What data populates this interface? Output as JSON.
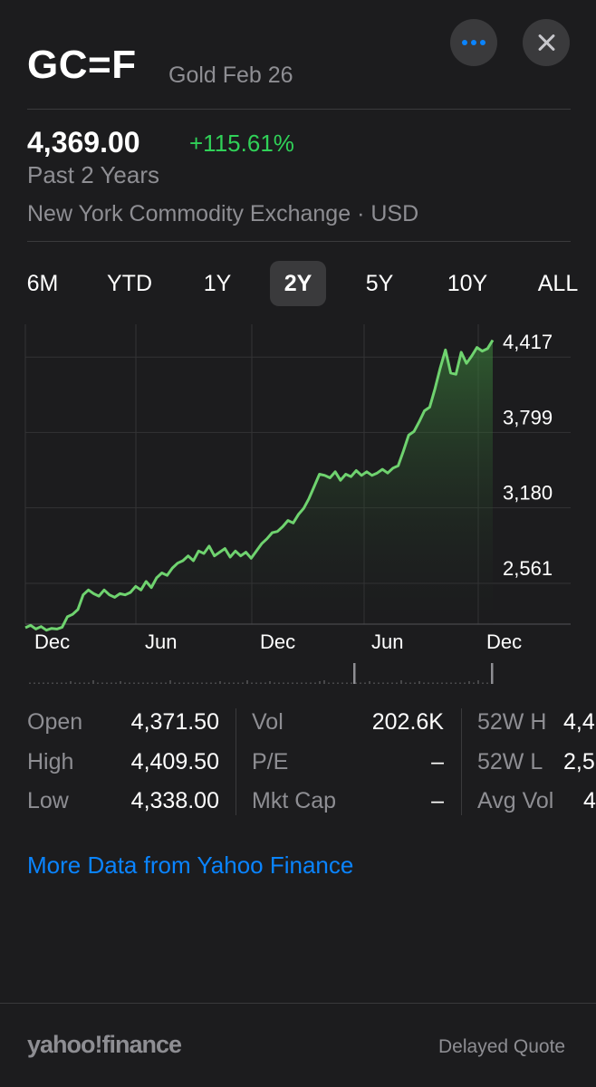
{
  "header": {
    "symbol": "GC=F",
    "name": "Gold Feb 26",
    "more_icon": "ellipsis-icon",
    "close_icon": "close-icon"
  },
  "quote": {
    "price": "4,369.00",
    "change": "+115.61%",
    "period": "Past 2 Years",
    "exchange": "New York Commodity Exchange · USD"
  },
  "ranges": [
    {
      "label": "6M"
    },
    {
      "label": "YTD"
    },
    {
      "label": "1Y"
    },
    {
      "label": "2Y",
      "active": true
    },
    {
      "label": "5Y"
    },
    {
      "label": "10Y"
    },
    {
      "label": "ALL"
    }
  ],
  "colors": {
    "accent": "#0a84ff",
    "positive": "#30d158",
    "line": "#6fd36f"
  },
  "chart_data": {
    "type": "area",
    "y_ticks": [
      "4,417",
      "3,799",
      "3,180",
      "2,561"
    ],
    "y_tick_values": [
      4417,
      3799,
      3180,
      2561
    ],
    "x_labels": [
      "Dec",
      "Jun",
      "Dec",
      "Jun",
      "Dec"
    ],
    "ylim": [
      2100,
      4560
    ],
    "grid": true,
    "series": [
      {
        "values": [
          2070,
          2090,
          2060,
          2080,
          2050,
          2065,
          2060,
          2075,
          2160,
          2180,
          2220,
          2340,
          2380,
          2350,
          2330,
          2380,
          2340,
          2320,
          2350,
          2340,
          2360,
          2410,
          2380,
          2450,
          2400,
          2480,
          2520,
          2500,
          2560,
          2600,
          2620,
          2660,
          2620,
          2700,
          2680,
          2740,
          2660,
          2690,
          2720,
          2650,
          2700,
          2660,
          2690,
          2640,
          2700,
          2760,
          2800,
          2850,
          2860,
          2900,
          2950,
          2930,
          3000,
          3050,
          3130,
          3230,
          3330,
          3320,
          3300,
          3350,
          3280,
          3330,
          3310,
          3360,
          3320,
          3350,
          3320,
          3340,
          3370,
          3340,
          3380,
          3400,
          3520,
          3650,
          3680,
          3760,
          3850,
          3880,
          4030,
          4200,
          4350,
          4160,
          4150,
          4330,
          4240,
          4300,
          4370,
          4340,
          4360,
          4430
        ]
      }
    ]
  },
  "stats": {
    "col1": [
      {
        "label": "Open",
        "value": "4,371.50"
      },
      {
        "label": "High",
        "value": "4,409.50"
      },
      {
        "label": "Low",
        "value": "4,338.00"
      }
    ],
    "col2": [
      {
        "label": "Vol",
        "value": "202.6K"
      },
      {
        "label": "P/E",
        "value": "–"
      },
      {
        "label": "Mkt Cap",
        "value": "–"
      }
    ],
    "col3": [
      {
        "label": "52W H",
        "value": "4,4"
      },
      {
        "label": "52W L",
        "value": "2,5"
      },
      {
        "label": "Avg Vol",
        "value": "4"
      }
    ]
  },
  "more_link": "More Data from Yahoo Finance",
  "footer": {
    "logo": "yahoo!finance",
    "delayed": "Delayed Quote"
  }
}
